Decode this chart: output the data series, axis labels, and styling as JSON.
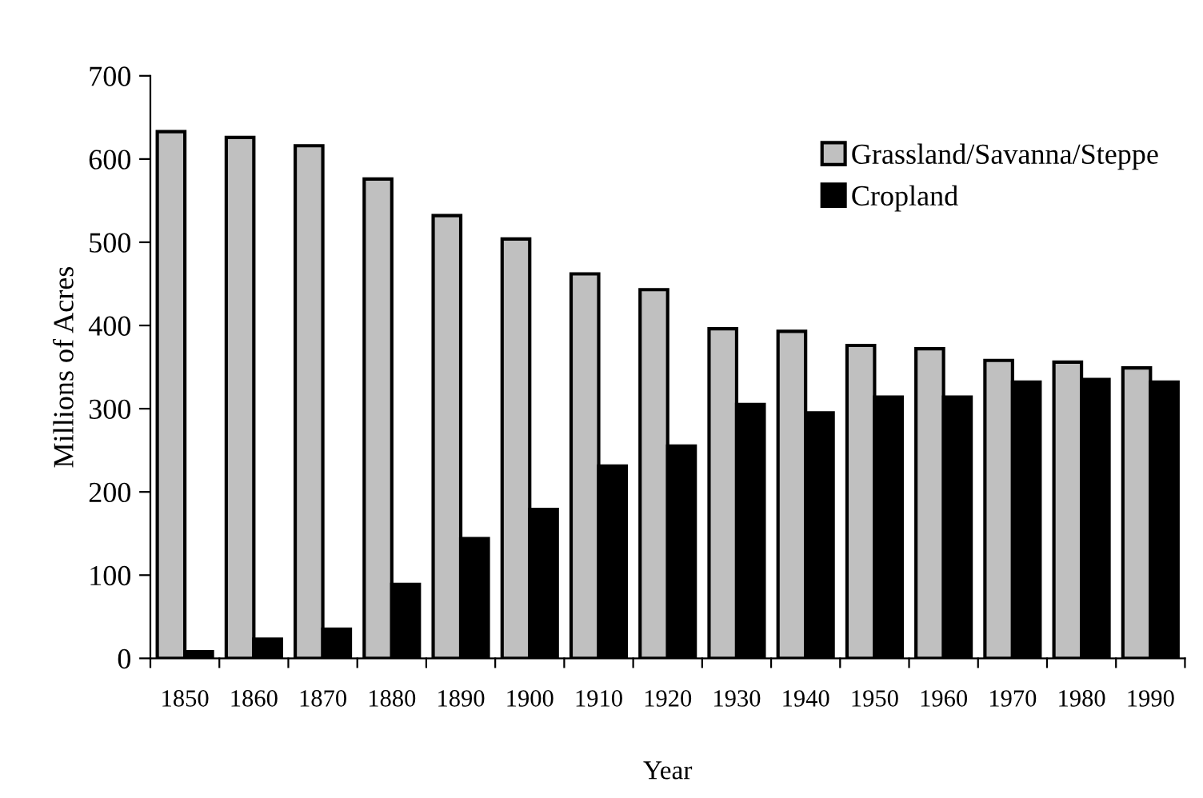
{
  "chart_data": {
    "type": "bar",
    "xlabel": "Year",
    "ylabel": "Millions of Acres",
    "categories": [
      "1850",
      "1860",
      "1870",
      "1880",
      "1890",
      "1900",
      "1910",
      "1920",
      "1930",
      "1940",
      "1950",
      "1960",
      "1970",
      "1980",
      "1990"
    ],
    "series": [
      {
        "name": "Grassland/Savanna/Steppe",
        "color": "#c0c0c0",
        "values": [
          633,
          626,
          616,
          576,
          532,
          504,
          462,
          443,
          396,
          393,
          376,
          372,
          358,
          356,
          349
        ]
      },
      {
        "name": "Cropland",
        "color": "#000000",
        "values": [
          8,
          23,
          35,
          89,
          144,
          179,
          231,
          255,
          305,
          295,
          314,
          314,
          332,
          335,
          332
        ]
      }
    ],
    "ylim": [
      0,
      700
    ],
    "yticks": [
      0,
      100,
      200,
      300,
      400,
      500,
      600,
      700
    ],
    "grid": false,
    "legend": "top right"
  }
}
